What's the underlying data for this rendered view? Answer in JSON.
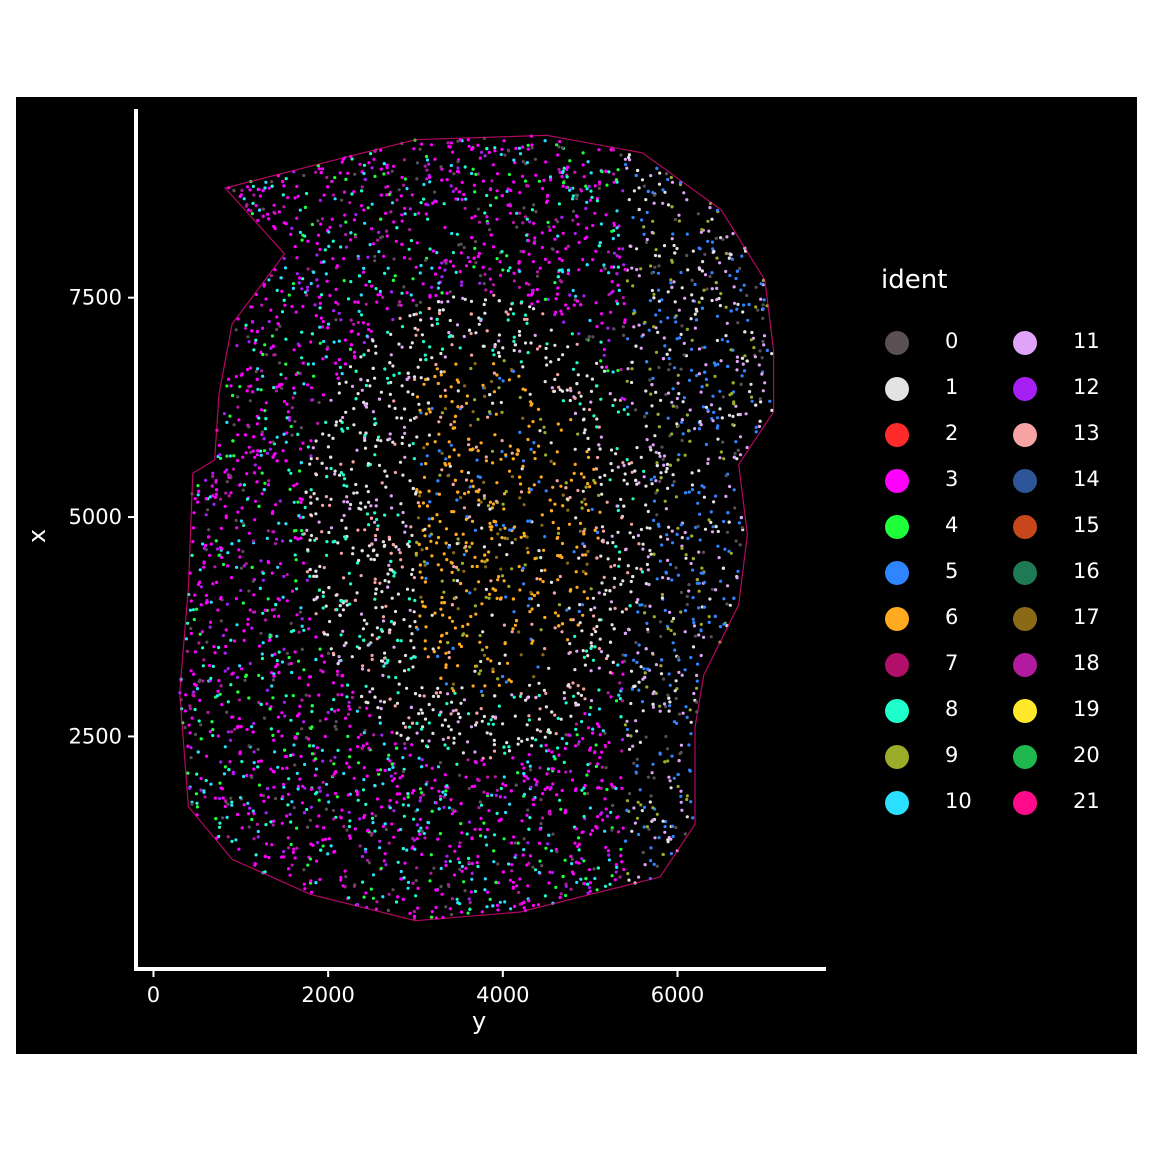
{
  "chart_data": {
    "type": "scatter",
    "title": "",
    "xlabel": "y",
    "ylabel": "x",
    "xlim": [
      -200,
      7700
    ],
    "ylim": [
      -150,
      9650
    ],
    "x_ticks": [
      0,
      2000,
      4000,
      6000
    ],
    "y_ticks": [
      2500,
      5000,
      7500
    ],
    "background": "#000000",
    "grid": false,
    "legend": {
      "title": "ident",
      "position": "right",
      "columns": 2
    },
    "series": [
      {
        "name": "0",
        "color": "#5a4f54"
      },
      {
        "name": "1",
        "color": "#e3e3e3"
      },
      {
        "name": "2",
        "color": "#ff2a2a"
      },
      {
        "name": "3",
        "color": "#ff00ff"
      },
      {
        "name": "4",
        "color": "#1fff3a"
      },
      {
        "name": "5",
        "color": "#2f85ff"
      },
      {
        "name": "6",
        "color": "#ffaa1f"
      },
      {
        "name": "7",
        "color": "#b0106a"
      },
      {
        "name": "8",
        "color": "#1fffcc"
      },
      {
        "name": "9",
        "color": "#9aac2a"
      },
      {
        "name": "10",
        "color": "#2adfff"
      },
      {
        "name": "11",
        "color": "#dfa3f7"
      },
      {
        "name": "12",
        "color": "#a61ff5"
      },
      {
        "name": "13",
        "color": "#f7a3a3"
      },
      {
        "name": "14",
        "color": "#2f5599"
      },
      {
        "name": "15",
        "color": "#c8461c"
      },
      {
        "name": "16",
        "color": "#1e7a55"
      },
      {
        "name": "17",
        "color": "#8a6a15"
      },
      {
        "name": "18",
        "color": "#b21aa0"
      },
      {
        "name": "19",
        "color": "#ffe82a"
      },
      {
        "name": "20",
        "color": "#1fb84f"
      },
      {
        "name": "21",
        "color": "#ff0a8a"
      }
    ]
  }
}
